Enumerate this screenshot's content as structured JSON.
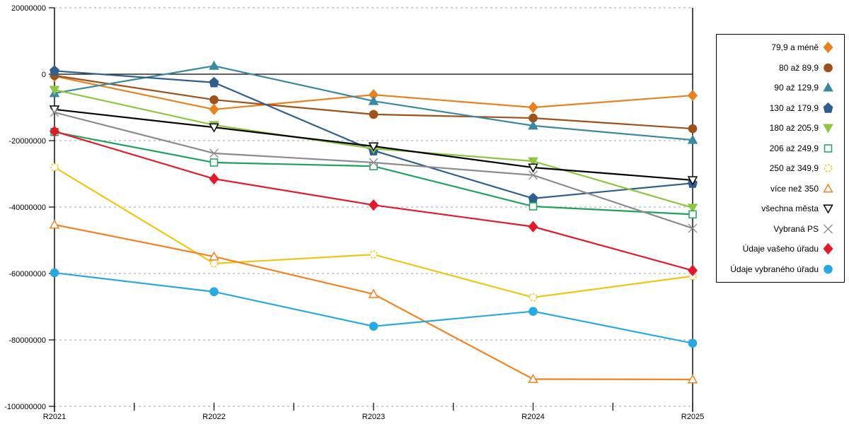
{
  "chart_data": {
    "type": "line",
    "title": "",
    "xlabel": "",
    "ylabel": "",
    "categories": [
      "R2021",
      "R2022",
      "R2023",
      "R2024",
      "R2025"
    ],
    "y_ticks": [
      20000000,
      0,
      -20000000,
      -40000000,
      -60000000,
      -80000000,
      -100000000
    ],
    "y_tick_labels": [
      "20000000",
      "0",
      "-20000000",
      "-40000000",
      "-60000000",
      "-80000000",
      "-100000000"
    ],
    "ylim": [
      -100000000,
      20000000
    ],
    "grid": "horizontal dashed gray gridlines every 20000000; solid black line at 0",
    "legend_position": "right",
    "background_color": "#ffffff",
    "series": [
      {
        "name": "79,9 a méně",
        "color": "#E8821E",
        "marker": "diamond",
        "marker_fill": "filled",
        "values": [
          -600000,
          -10600000,
          -6200000,
          -10000000,
          -6400000
        ]
      },
      {
        "name": "80 až 89,9",
        "color": "#9E5119",
        "marker": "circle",
        "marker_fill": "filled",
        "values": [
          -400000,
          -7700000,
          -12100000,
          -13200000,
          -16400000
        ]
      },
      {
        "name": "90 až 129,9",
        "color": "#3A89A0",
        "marker": "triangle-up",
        "marker_fill": "filled",
        "values": [
          -5700000,
          2500000,
          -8100000,
          -15500000,
          -19800000
        ]
      },
      {
        "name": "130 až 179,9",
        "color": "#2F5F8F",
        "marker": "pentagon",
        "marker_fill": "filled",
        "values": [
          1000000,
          -2500000,
          -23000000,
          -37400000,
          -32800000
        ]
      },
      {
        "name": "180 až 205,9",
        "color": "#8DC63F",
        "marker": "triangle-down",
        "marker_fill": "filled",
        "values": [
          -4700000,
          -15300000,
          -22400000,
          -26200000,
          -40200000
        ]
      },
      {
        "name": "206 až 249,9",
        "color": "#1FA35C",
        "marker": "square",
        "marker_fill": "open",
        "values": [
          -17400000,
          -26600000,
          -27700000,
          -39800000,
          -42200000
        ]
      },
      {
        "name": "250 až 349,9",
        "color": "#F0C514",
        "marker": "circle-dashed",
        "marker_fill": "open",
        "values": [
          -28000000,
          -57000000,
          -54300000,
          -67200000,
          -60800000
        ]
      },
      {
        "name": "více než 350",
        "color": "#F58220",
        "marker": "triangle-up",
        "marker_fill": "open",
        "values": [
          -45300000,
          -54900000,
          -66200000,
          -91800000,
          -91900000
        ]
      },
      {
        "name": "všechna města",
        "color": "#000000",
        "marker": "triangle-down",
        "marker_fill": "open",
        "values": [
          -10600000,
          -16000000,
          -21700000,
          -28100000,
          -31900000
        ]
      },
      {
        "name": "Vybraná PS",
        "color": "#8C8C8C",
        "marker": "x-cross",
        "marker_fill": "line",
        "values": [
          -11500000,
          -23800000,
          -26600000,
          -30400000,
          -46400000
        ]
      },
      {
        "name": "Údaje vašeho úřadu",
        "color": "#E4192C",
        "marker": "diamond",
        "marker_fill": "filled",
        "values": [
          -17200000,
          -31500000,
          -39400000,
          -45900000,
          -59100000
        ]
      },
      {
        "name": "Údaje vybraného úřadu",
        "color": "#29A9E1",
        "marker": "circle",
        "marker_fill": "filled",
        "values": [
          -59800000,
          -65500000,
          -75900000,
          -71400000,
          -81000000
        ]
      }
    ]
  },
  "layout_colors": {
    "gridline": "#b4b4b4",
    "axis": "#000000",
    "legend_border": "#000000"
  }
}
